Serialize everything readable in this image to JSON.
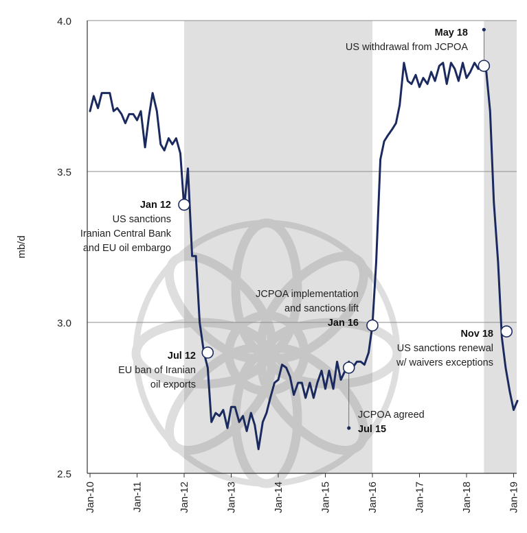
{
  "chart_data": {
    "type": "line",
    "ylabel": "mb/d",
    "ylim": [
      2.5,
      4.0
    ],
    "yticks": [
      2.5,
      3.0,
      3.5,
      4.0
    ],
    "ytick_labels": [
      "2.5",
      "3.0",
      "3.5",
      "4.0"
    ],
    "xlim": [
      2010.0,
      2019.1
    ],
    "xticks": [
      2010,
      2011,
      2012,
      2013,
      2014,
      2015,
      2016,
      2017,
      2018,
      2019
    ],
    "xtick_labels": [
      "Jan-10",
      "Jan-11",
      "Jan-12",
      "Jan-13",
      "Jan-14",
      "Jan-15",
      "Jan-16",
      "Jan-17",
      "Jan-18",
      "Jan-19"
    ],
    "shaded_periods": [
      [
        2012.0,
        2016.0
      ],
      [
        2018.37,
        2019.1
      ]
    ],
    "series": [
      {
        "color": "#1b2a5e",
        "x": [
          2010.0,
          2010.08,
          2010.17,
          2010.25,
          2010.33,
          2010.42,
          2010.5,
          2010.58,
          2010.67,
          2010.75,
          2010.83,
          2010.92,
          2011.0,
          2011.08,
          2011.17,
          2011.25,
          2011.33,
          2011.42,
          2011.5,
          2011.58,
          2011.67,
          2011.75,
          2011.83,
          2011.92,
          2012.0,
          2012.08,
          2012.17,
          2012.25,
          2012.33,
          2012.42,
          2012.5,
          2012.58,
          2012.67,
          2012.75,
          2012.83,
          2012.92,
          2013.0,
          2013.08,
          2013.17,
          2013.25,
          2013.33,
          2013.42,
          2013.5,
          2013.58,
          2013.67,
          2013.75,
          2013.83,
          2013.92,
          2014.0,
          2014.08,
          2014.17,
          2014.25,
          2014.33,
          2014.42,
          2014.5,
          2014.58,
          2014.67,
          2014.75,
          2014.83,
          2014.92,
          2015.0,
          2015.08,
          2015.17,
          2015.25,
          2015.33,
          2015.42,
          2015.5,
          2015.58,
          2015.67,
          2015.75,
          2015.83,
          2015.92,
          2016.0,
          2016.08,
          2016.17,
          2016.25,
          2016.33,
          2016.42,
          2016.5,
          2016.58,
          2016.67,
          2016.75,
          2016.83,
          2016.92,
          2017.0,
          2017.08,
          2017.17,
          2017.25,
          2017.33,
          2017.42,
          2017.5,
          2017.58,
          2017.67,
          2017.75,
          2017.83,
          2017.92,
          2018.0,
          2018.08,
          2018.17,
          2018.25,
          2018.33,
          2018.42,
          2018.5,
          2018.58,
          2018.67,
          2018.75,
          2018.83,
          2018.92,
          2019.0,
          2019.08
        ],
        "y": [
          3.7,
          3.75,
          3.71,
          3.76,
          3.76,
          3.76,
          3.7,
          3.71,
          3.69,
          3.66,
          3.69,
          3.69,
          3.67,
          3.7,
          3.58,
          3.68,
          3.76,
          3.7,
          3.59,
          3.57,
          3.61,
          3.59,
          3.61,
          3.56,
          3.38,
          3.51,
          3.22,
          3.22,
          3.0,
          2.9,
          2.85,
          2.67,
          2.7,
          2.69,
          2.71,
          2.65,
          2.72,
          2.72,
          2.67,
          2.69,
          2.64,
          2.7,
          2.66,
          2.58,
          2.67,
          2.7,
          2.75,
          2.8,
          2.81,
          2.86,
          2.85,
          2.82,
          2.76,
          2.8,
          2.8,
          2.75,
          2.8,
          2.75,
          2.8,
          2.84,
          2.78,
          2.84,
          2.78,
          2.87,
          2.81,
          2.84,
          2.87,
          2.85,
          2.87,
          2.87,
          2.86,
          2.9,
          2.99,
          3.2,
          3.54,
          3.6,
          3.62,
          3.64,
          3.66,
          3.72,
          3.86,
          3.8,
          3.79,
          3.82,
          3.78,
          3.81,
          3.79,
          3.83,
          3.8,
          3.85,
          3.86,
          3.79,
          3.86,
          3.84,
          3.8,
          3.86,
          3.81,
          3.83,
          3.86,
          3.84,
          3.85,
          3.83,
          3.7,
          3.4,
          3.2,
          2.95,
          2.85,
          2.77,
          2.71,
          2.74
        ]
      }
    ],
    "annotations": [
      {
        "date": "Jan 12",
        "lines": [
          "US sanctions",
          "Iranian Central Bank",
          "and EU oil embargo"
        ],
        "marker": "open",
        "x": 2012.0,
        "y": 3.39
      },
      {
        "date": "Jul 12",
        "lines": [
          "EU ban of Iranian",
          "oil exports"
        ],
        "marker": "open",
        "x": 2012.5,
        "y": 2.9
      },
      {
        "date": "Jul 15",
        "lines": [
          "JCPOA agreed"
        ],
        "marker": "open",
        "x": 2015.5,
        "y": 2.85,
        "dot_y": 2.65
      },
      {
        "date": "Jan 16",
        "lines": [
          "JCPOA implementation",
          "and sanctions lift"
        ],
        "marker": "open",
        "x": 2016.0,
        "y": 2.99
      },
      {
        "date": "May 18",
        "lines": [
          "US withdrawal from JCPOA"
        ],
        "marker": "open",
        "x": 2018.37,
        "y": 3.85,
        "dot_y": 3.97
      },
      {
        "date": "Nov 18",
        "lines": [
          "US sanctions renewal",
          "w/ waivers exceptions"
        ],
        "marker": "open",
        "x": 2018.85,
        "y": 2.97
      }
    ]
  }
}
